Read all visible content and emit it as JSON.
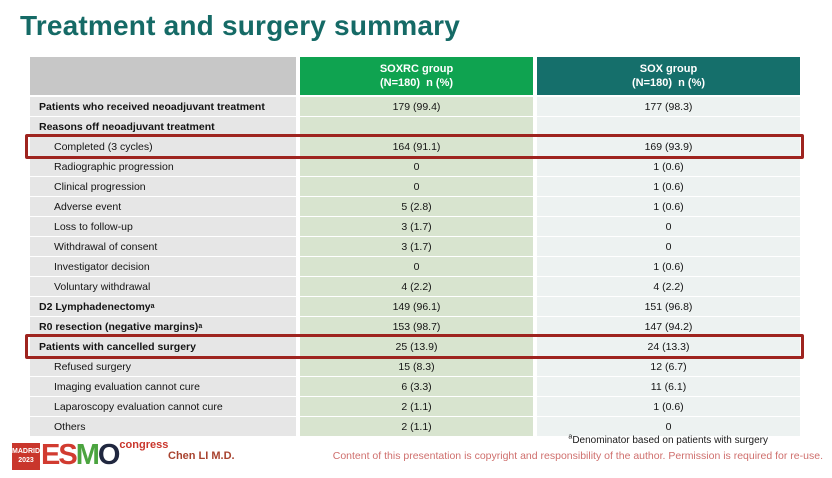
{
  "slide": {
    "title": "Treatment and surgery summary"
  },
  "colors": {
    "title_teal": "#156a66",
    "header_green": "#0fa350",
    "header_teal": "#156f6b",
    "label_col_bg": "#e6e6e6",
    "soxrc_col_bg": "#d8e4cf",
    "sox_col_bg": "#edf2f1",
    "highlight_red": "#9e241f",
    "logo_red": "#c9362c",
    "copyright_pink": "#cf6f6d"
  },
  "table": {
    "columns": [
      {
        "line1": "SOXRC group",
        "line2": "(N=180)  n (%)"
      },
      {
        "line1": "SOX group",
        "line2": "(N=180)  n (%)"
      }
    ],
    "rows": [
      {
        "label": "Patients who received neoadjuvant treatment",
        "soxrc": "179 (99.4)",
        "sox": "177 (98.3)",
        "bold": true,
        "indent": false,
        "highlight": false
      },
      {
        "label": "Reasons off neoadjuvant treatment",
        "soxrc": "",
        "sox": "",
        "bold": true,
        "indent": false,
        "highlight": false
      },
      {
        "label": "Completed (3 cycles)",
        "soxrc": "164 (91.1)",
        "sox": "169 (93.9)",
        "bold": false,
        "indent": true,
        "highlight": true
      },
      {
        "label": "Radiographic progression",
        "soxrc": "0",
        "sox": "1 (0.6)",
        "bold": false,
        "indent": true,
        "highlight": false
      },
      {
        "label": "Clinical progression",
        "soxrc": "0",
        "sox": "1 (0.6)",
        "bold": false,
        "indent": true,
        "highlight": false
      },
      {
        "label": "Adverse event",
        "soxrc": "5 (2.8)",
        "sox": "1 (0.6)",
        "bold": false,
        "indent": true,
        "highlight": false
      },
      {
        "label": "Loss to follow-up",
        "soxrc": "3 (1.7)",
        "sox": "0",
        "bold": false,
        "indent": true,
        "highlight": false
      },
      {
        "label": "Withdrawal of consent",
        "soxrc": "3 (1.7)",
        "sox": "0",
        "bold": false,
        "indent": true,
        "highlight": false
      },
      {
        "label": "Investigator decision",
        "soxrc": "0",
        "sox": "1 (0.6)",
        "bold": false,
        "indent": true,
        "highlight": false
      },
      {
        "label": "Voluntary withdrawal",
        "soxrc": "4 (2.2)",
        "sox": "4 (2.2)",
        "bold": false,
        "indent": true,
        "highlight": false
      },
      {
        "label": "D2 Lymphadenectomy",
        "label_sup": "a",
        "soxrc": "149 (96.1)",
        "sox": "151 (96.8)",
        "bold": true,
        "indent": false,
        "highlight": false
      },
      {
        "label": "R0 resection (negative margins)",
        "label_sup": "a",
        "soxrc": "153 (98.7)",
        "sox": "147 (94.2)",
        "bold": true,
        "indent": false,
        "highlight": false
      },
      {
        "label": "Patients with cancelled surgery",
        "soxrc": "25 (13.9)",
        "sox": "24 (13.3)",
        "bold": true,
        "indent": false,
        "highlight": true
      },
      {
        "label": "Refused surgery",
        "soxrc": "15 (8.3)",
        "sox": "12 (6.7)",
        "bold": false,
        "indent": true,
        "highlight": false
      },
      {
        "label": "Imaging evaluation cannot cure",
        "soxrc": "6 (3.3)",
        "sox": "11 (6.1)",
        "bold": false,
        "indent": true,
        "highlight": false
      },
      {
        "label": "Laparoscopy evaluation cannot cure",
        "soxrc": "2 (1.1)",
        "sox": "1 (0.6)",
        "bold": false,
        "indent": true,
        "highlight": false
      },
      {
        "label": "Others",
        "soxrc": "2 (1.1)",
        "sox": "0",
        "bold": false,
        "indent": true,
        "highlight": false
      }
    ]
  },
  "footer": {
    "logo": {
      "badge_line1": "MADRID",
      "badge_line2": "2023",
      "es": "ES",
      "m": "M",
      "o": "O",
      "congress": "congress"
    },
    "author": "Chen LI M.D.",
    "footnote_sup": "a",
    "footnote_text": "Denominator based on patients with surgery",
    "copyright": "Content of this presentation is copyright and responsibility of the author. Permission is required for re-use."
  }
}
